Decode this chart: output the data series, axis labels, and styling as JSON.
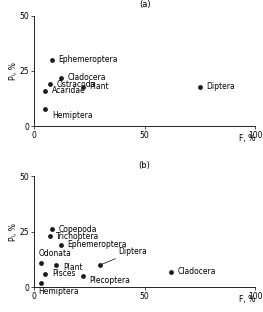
{
  "subplot_a": {
    "label": "(a)",
    "points": [
      {
        "name": "Ephemeroptera",
        "F": 8,
        "P": 30
      },
      {
        "name": "Cladocera",
        "F": 12,
        "P": 22
      },
      {
        "name": "Ostracoda",
        "F": 7,
        "P": 19
      },
      {
        "name": "Plant",
        "F": 22,
        "P": 18
      },
      {
        "name": "Acaridae",
        "F": 5,
        "P": 16
      },
      {
        "name": "Hemiptera",
        "F": 5,
        "P": 8
      },
      {
        "name": "Diptera",
        "F": 75,
        "P": 18
      }
    ]
  },
  "subplot_b": {
    "label": "(b)",
    "points": [
      {
        "name": "Copepoda",
        "F": 8,
        "P": 26
      },
      {
        "name": "Trichoptera",
        "F": 7,
        "P": 23
      },
      {
        "name": "Ephemeroptera",
        "F": 12,
        "P": 19
      },
      {
        "name": "Odonata",
        "F": 3,
        "P": 11
      },
      {
        "name": "Plant",
        "F": 10,
        "P": 10
      },
      {
        "name": "Diptera",
        "F": 30,
        "P": 10
      },
      {
        "name": "Pisces",
        "F": 5,
        "P": 6
      },
      {
        "name": "Plecoptera",
        "F": 22,
        "P": 5
      },
      {
        "name": "Hemiptera",
        "F": 3,
        "P": 2
      },
      {
        "name": "Cladocera",
        "F": 62,
        "P": 7
      }
    ]
  },
  "xlim": [
    0,
    100
  ],
  "ylim": [
    0,
    50
  ],
  "xticks": [
    0,
    50,
    100
  ],
  "yticks": [
    0,
    25,
    50
  ],
  "xlabel": "F, %",
  "ylabel": "Pᵢ, %",
  "dot_color": "#1a1a1a",
  "dot_size": 12,
  "font_size": 5.5,
  "bg_color": "#ffffff",
  "label_a": {
    "Ephemeroptera": [
      3,
      0,
      "left",
      "center"
    ],
    "Cladocera": [
      3,
      0,
      "left",
      "center"
    ],
    "Ostracoda": [
      3,
      0,
      "left",
      "center"
    ],
    "Plant": [
      3,
      0,
      "left",
      "center"
    ],
    "Acaridae": [
      3,
      0,
      "left",
      "center"
    ],
    "Hemiptera": [
      3,
      -3,
      "left",
      "center"
    ],
    "Diptera": [
      3,
      0,
      "left",
      "center"
    ]
  },
  "label_b": {
    "Copepoda": [
      3,
      0,
      "left",
      "center",
      false
    ],
    "Trichoptera": [
      3,
      0,
      "left",
      "center",
      false
    ],
    "Ephemeroptera": [
      3,
      0,
      "left",
      "center",
      false
    ],
    "Odonata": [
      -1,
      2,
      "left",
      "bottom",
      false
    ],
    "Plant": [
      3,
      -1,
      "left",
      "center",
      false
    ],
    "Diptera": [
      8,
      4,
      "left",
      "bottom",
      true
    ],
    "Pisces": [
      3,
      0,
      "left",
      "center",
      false
    ],
    "Plecoptera": [
      3,
      -2,
      "left",
      "center",
      false
    ],
    "Hemiptera": [
      -1,
      -2,
      "left",
      "top",
      false
    ],
    "Cladocera": [
      3,
      0,
      "left",
      "center",
      false
    ]
  }
}
